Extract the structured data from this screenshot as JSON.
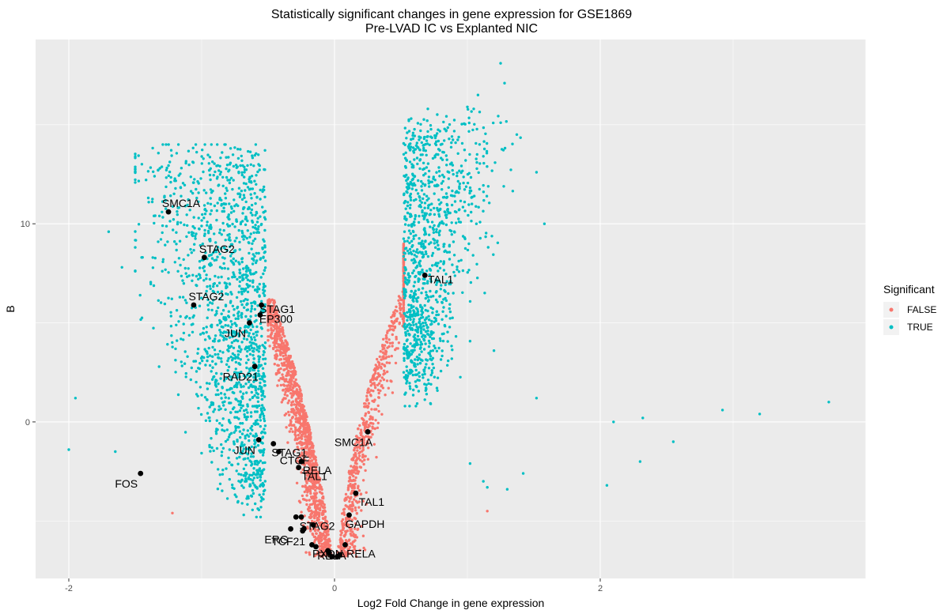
{
  "chart_data": {
    "type": "scatter",
    "title_line1": "Statistically significant changes in gene expression for GSE1869",
    "title_line2": "Pre-LVAD IC vs Explanted NIC",
    "xlabel": "Log2 Fold Change in gene expression",
    "ylabel": "B",
    "xlim": [
      -2.25,
      4.0
    ],
    "ylim": [
      -7.9,
      19.3
    ],
    "x_ticks": [
      -2,
      0,
      2
    ],
    "y_ticks": [
      0,
      10
    ],
    "x_tick_labels": [
      "-2",
      "0",
      "2"
    ],
    "y_tick_labels": [
      "0",
      "10"
    ],
    "grid": true,
    "legend": {
      "title": "Significant",
      "position": "right",
      "items": [
        {
          "label": "FALSE",
          "color": "#F8766D"
        },
        {
          "label": "TRUE",
          "color": "#00BFC4"
        }
      ]
    },
    "colors": {
      "panel": "#EBEBEB",
      "grid_major": "#FFFFFF",
      "false": "#F8766D",
      "true": "#00BFC4",
      "highlight": "#000000"
    },
    "highlighted_genes": [
      {
        "gene": "SMC1A",
        "x": -1.25,
        "y": 10.6
      },
      {
        "gene": "STAG2",
        "x": -0.98,
        "y": 8.3
      },
      {
        "gene": "STAG2",
        "x": -1.06,
        "y": 5.9
      },
      {
        "gene": "STAG1",
        "x": -0.55,
        "y": 5.9
      },
      {
        "gene": "EP300",
        "x": -0.56,
        "y": 5.4
      },
      {
        "gene": "JUN",
        "x": -0.64,
        "y": 5.0
      },
      {
        "gene": "RAD21",
        "x": -0.6,
        "y": 2.8
      },
      {
        "gene": "JUN",
        "x": -0.57,
        "y": -0.9
      },
      {
        "gene": "STAG1",
        "x": -0.46,
        "y": -1.1
      },
      {
        "gene": "CTCF",
        "x": -0.42,
        "y": -1.5
      },
      {
        "gene": "RELA",
        "x": -0.25,
        "y": -2.0
      },
      {
        "gene": "TAL1",
        "x": -0.27,
        "y": -2.3
      },
      {
        "gene": "FOS",
        "x": -1.46,
        "y": -2.6
      },
      {
        "gene": "STAG2",
        "x": -0.25,
        "y": -4.8
      },
      {
        "gene": "ERG",
        "x": -0.33,
        "y": -5.4
      },
      {
        "gene": "TCF21",
        "x": -0.24,
        "y": -5.5
      },
      {
        "gene": "PXDN",
        "x": -0.17,
        "y": -6.2
      },
      {
        "gene": "RELA",
        "x": -0.14,
        "y": -6.3
      },
      {
        "gene": "RELA",
        "x": 0.08,
        "y": -6.2
      },
      {
        "gene": "SMC1A",
        "x": 0.25,
        "y": -0.5
      },
      {
        "gene": "TAL1",
        "x": 0.16,
        "y": -3.6
      },
      {
        "gene": "GAPDH",
        "x": 0.11,
        "y": -4.7
      },
      {
        "gene": "TAL1",
        "x": 0.68,
        "y": 7.4
      }
    ],
    "highlighted_unlabeled": [
      {
        "x": -0.29,
        "y": -4.8
      },
      {
        "x": -0.16,
        "y": -5.2
      },
      {
        "x": -0.23,
        "y": -5.4
      },
      {
        "x": -0.04,
        "y": -6.6
      },
      {
        "x": 0.02,
        "y": -6.8
      },
      {
        "x": -0.02,
        "y": -6.8
      },
      {
        "x": -0.05,
        "y": -6.5
      },
      {
        "x": 0.04,
        "y": -6.7
      }
    ],
    "outliers_true": [
      {
        "x": 1.25,
        "y": 18.1
      },
      {
        "x": 1.28,
        "y": 17.1
      },
      {
        "x": 1.08,
        "y": 16.5
      },
      {
        "x": 1.0,
        "y": 15.9
      },
      {
        "x": 1.52,
        "y": 12.6
      },
      {
        "x": 1.58,
        "y": 10.0
      },
      {
        "x": 1.52,
        "y": 1.2
      },
      {
        "x": 1.2,
        "y": 3.6
      },
      {
        "x": -1.95,
        "y": 1.2
      },
      {
        "x": -2.0,
        "y": -1.4
      },
      {
        "x": -1.6,
        "y": 7.8
      },
      {
        "x": -1.7,
        "y": 9.6
      },
      {
        "x": -1.65,
        "y": -1.5
      },
      {
        "x": 2.05,
        "y": -3.2
      },
      {
        "x": 2.1,
        "y": 0.0
      },
      {
        "x": 2.32,
        "y": 0.2
      },
      {
        "x": 2.3,
        "y": -2.0
      },
      {
        "x": 2.55,
        "y": -1.0
      },
      {
        "x": 2.92,
        "y": 0.6
      },
      {
        "x": 3.2,
        "y": 0.4
      },
      {
        "x": 3.72,
        "y": 1.0
      },
      {
        "x": 1.02,
        "y": -2.1
      },
      {
        "x": 1.12,
        "y": -3.0
      },
      {
        "x": 1.15,
        "y": -3.3
      },
      {
        "x": 1.3,
        "y": -3.4
      },
      {
        "x": 1.42,
        "y": -2.6
      }
    ],
    "outliers_false": [
      {
        "x": 1.15,
        "y": -4.5
      },
      {
        "x": -1.22,
        "y": -4.6
      }
    ]
  }
}
